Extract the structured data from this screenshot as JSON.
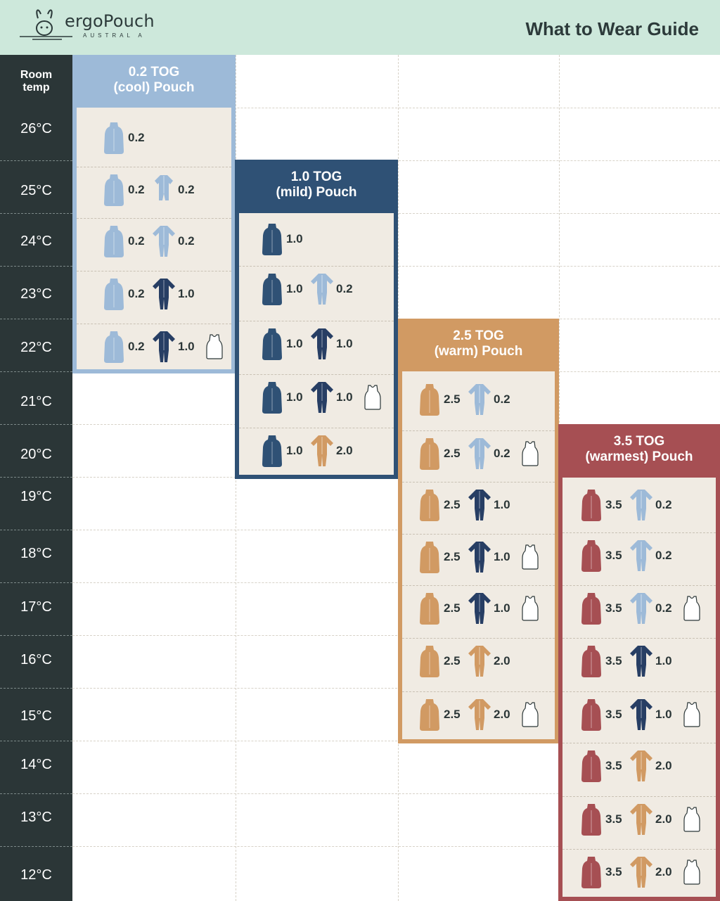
{
  "header": {
    "brand": "ergoPouch",
    "brand_sub": "AUSTRAL A",
    "title": "What to Wear Guide"
  },
  "temp_column": {
    "heading_line1": "Room",
    "heading_line2": "temp",
    "temps": [
      "26°C",
      "25°C",
      "24°C",
      "23°C",
      "22°C",
      "21°C",
      "20°C",
      "19°C",
      "18°C",
      "17°C",
      "16°C",
      "15°C",
      "14°C",
      "13°C",
      "12°C"
    ]
  },
  "colors": {
    "cool": "#9dbad8",
    "mild": "#2f5175",
    "warm": "#d19a63",
    "warmest": "#a64f53",
    "bodysuit_light": "#9dbad8",
    "bodysuit_navy": "#273e64",
    "bodysuit_tan": "#d19a63",
    "header_bg": "#cde8db",
    "temp_bg": "#2b3637"
  },
  "pouches": [
    {
      "id": "cool",
      "title_line1": "0.2 TOG",
      "title_line2": "(cool) Pouch",
      "rows": [
        {
          "pouch": "0.2",
          "suit": "",
          "suit_color": "",
          "suit_style": "",
          "singlet": false
        },
        {
          "pouch": "0.2",
          "suit": "0.2",
          "suit_color": "light",
          "suit_style": "short",
          "singlet": false
        },
        {
          "pouch": "0.2",
          "suit": "0.2",
          "suit_color": "light",
          "suit_style": "long",
          "singlet": false
        },
        {
          "pouch": "0.2",
          "suit": "1.0",
          "suit_color": "navy",
          "suit_style": "long",
          "singlet": false
        },
        {
          "pouch": "0.2",
          "suit": "1.0",
          "suit_color": "navy",
          "suit_style": "long",
          "singlet": true
        }
      ]
    },
    {
      "id": "mild",
      "title_line1": "1.0 TOG",
      "title_line2": "(mild) Pouch",
      "rows": [
        {
          "pouch": "1.0",
          "suit": "",
          "suit_color": "",
          "suit_style": "",
          "singlet": false
        },
        {
          "pouch": "1.0",
          "suit": "0.2",
          "suit_color": "light",
          "suit_style": "long",
          "singlet": false
        },
        {
          "pouch": "1.0",
          "suit": "1.0",
          "suit_color": "navy",
          "suit_style": "long",
          "singlet": false
        },
        {
          "pouch": "1.0",
          "suit": "1.0",
          "suit_color": "navy",
          "suit_style": "long",
          "singlet": true
        },
        {
          "pouch": "1.0",
          "suit": "2.0",
          "suit_color": "tan",
          "suit_style": "long",
          "singlet": false
        }
      ]
    },
    {
      "id": "warm",
      "title_line1": "2.5 TOG",
      "title_line2": "(warm) Pouch",
      "rows": [
        {
          "pouch": "2.5",
          "suit": "0.2",
          "suit_color": "light",
          "suit_style": "long",
          "singlet": false
        },
        {
          "pouch": "2.5",
          "suit": "0.2",
          "suit_color": "light",
          "suit_style": "long",
          "singlet": true
        },
        {
          "pouch": "2.5",
          "suit": "1.0",
          "suit_color": "navy",
          "suit_style": "long",
          "singlet": false
        },
        {
          "pouch": "2.5",
          "suit": "1.0",
          "suit_color": "navy",
          "suit_style": "long",
          "singlet": true
        },
        {
          "pouch": "2.5",
          "suit": "1.0",
          "suit_color": "navy",
          "suit_style": "long",
          "singlet": true
        },
        {
          "pouch": "2.5",
          "suit": "2.0",
          "suit_color": "tan",
          "suit_style": "long",
          "singlet": false
        },
        {
          "pouch": "2.5",
          "suit": "2.0",
          "suit_color": "tan",
          "suit_style": "long",
          "singlet": true
        }
      ]
    },
    {
      "id": "warmest",
      "title_line1": "3.5 TOG",
      "title_line2": "(warmest) Pouch",
      "rows": [
        {
          "pouch": "3.5",
          "suit": "0.2",
          "suit_color": "light",
          "suit_style": "long",
          "singlet": false
        },
        {
          "pouch": "3.5",
          "suit": "0.2",
          "suit_color": "light",
          "suit_style": "long",
          "singlet": false
        },
        {
          "pouch": "3.5",
          "suit": "0.2",
          "suit_color": "light",
          "suit_style": "long",
          "singlet": true
        },
        {
          "pouch": "3.5",
          "suit": "1.0",
          "suit_color": "navy",
          "suit_style": "long",
          "singlet": false
        },
        {
          "pouch": "3.5",
          "suit": "1.0",
          "suit_color": "navy",
          "suit_style": "long",
          "singlet": true
        },
        {
          "pouch": "3.5",
          "suit": "2.0",
          "suit_color": "tan",
          "suit_style": "long",
          "singlet": false
        },
        {
          "pouch": "3.5",
          "suit": "2.0",
          "suit_color": "tan",
          "suit_style": "long",
          "singlet": true
        },
        {
          "pouch": "3.5",
          "suit": "2.0",
          "suit_color": "tan",
          "suit_style": "long",
          "singlet": true
        }
      ]
    }
  ]
}
